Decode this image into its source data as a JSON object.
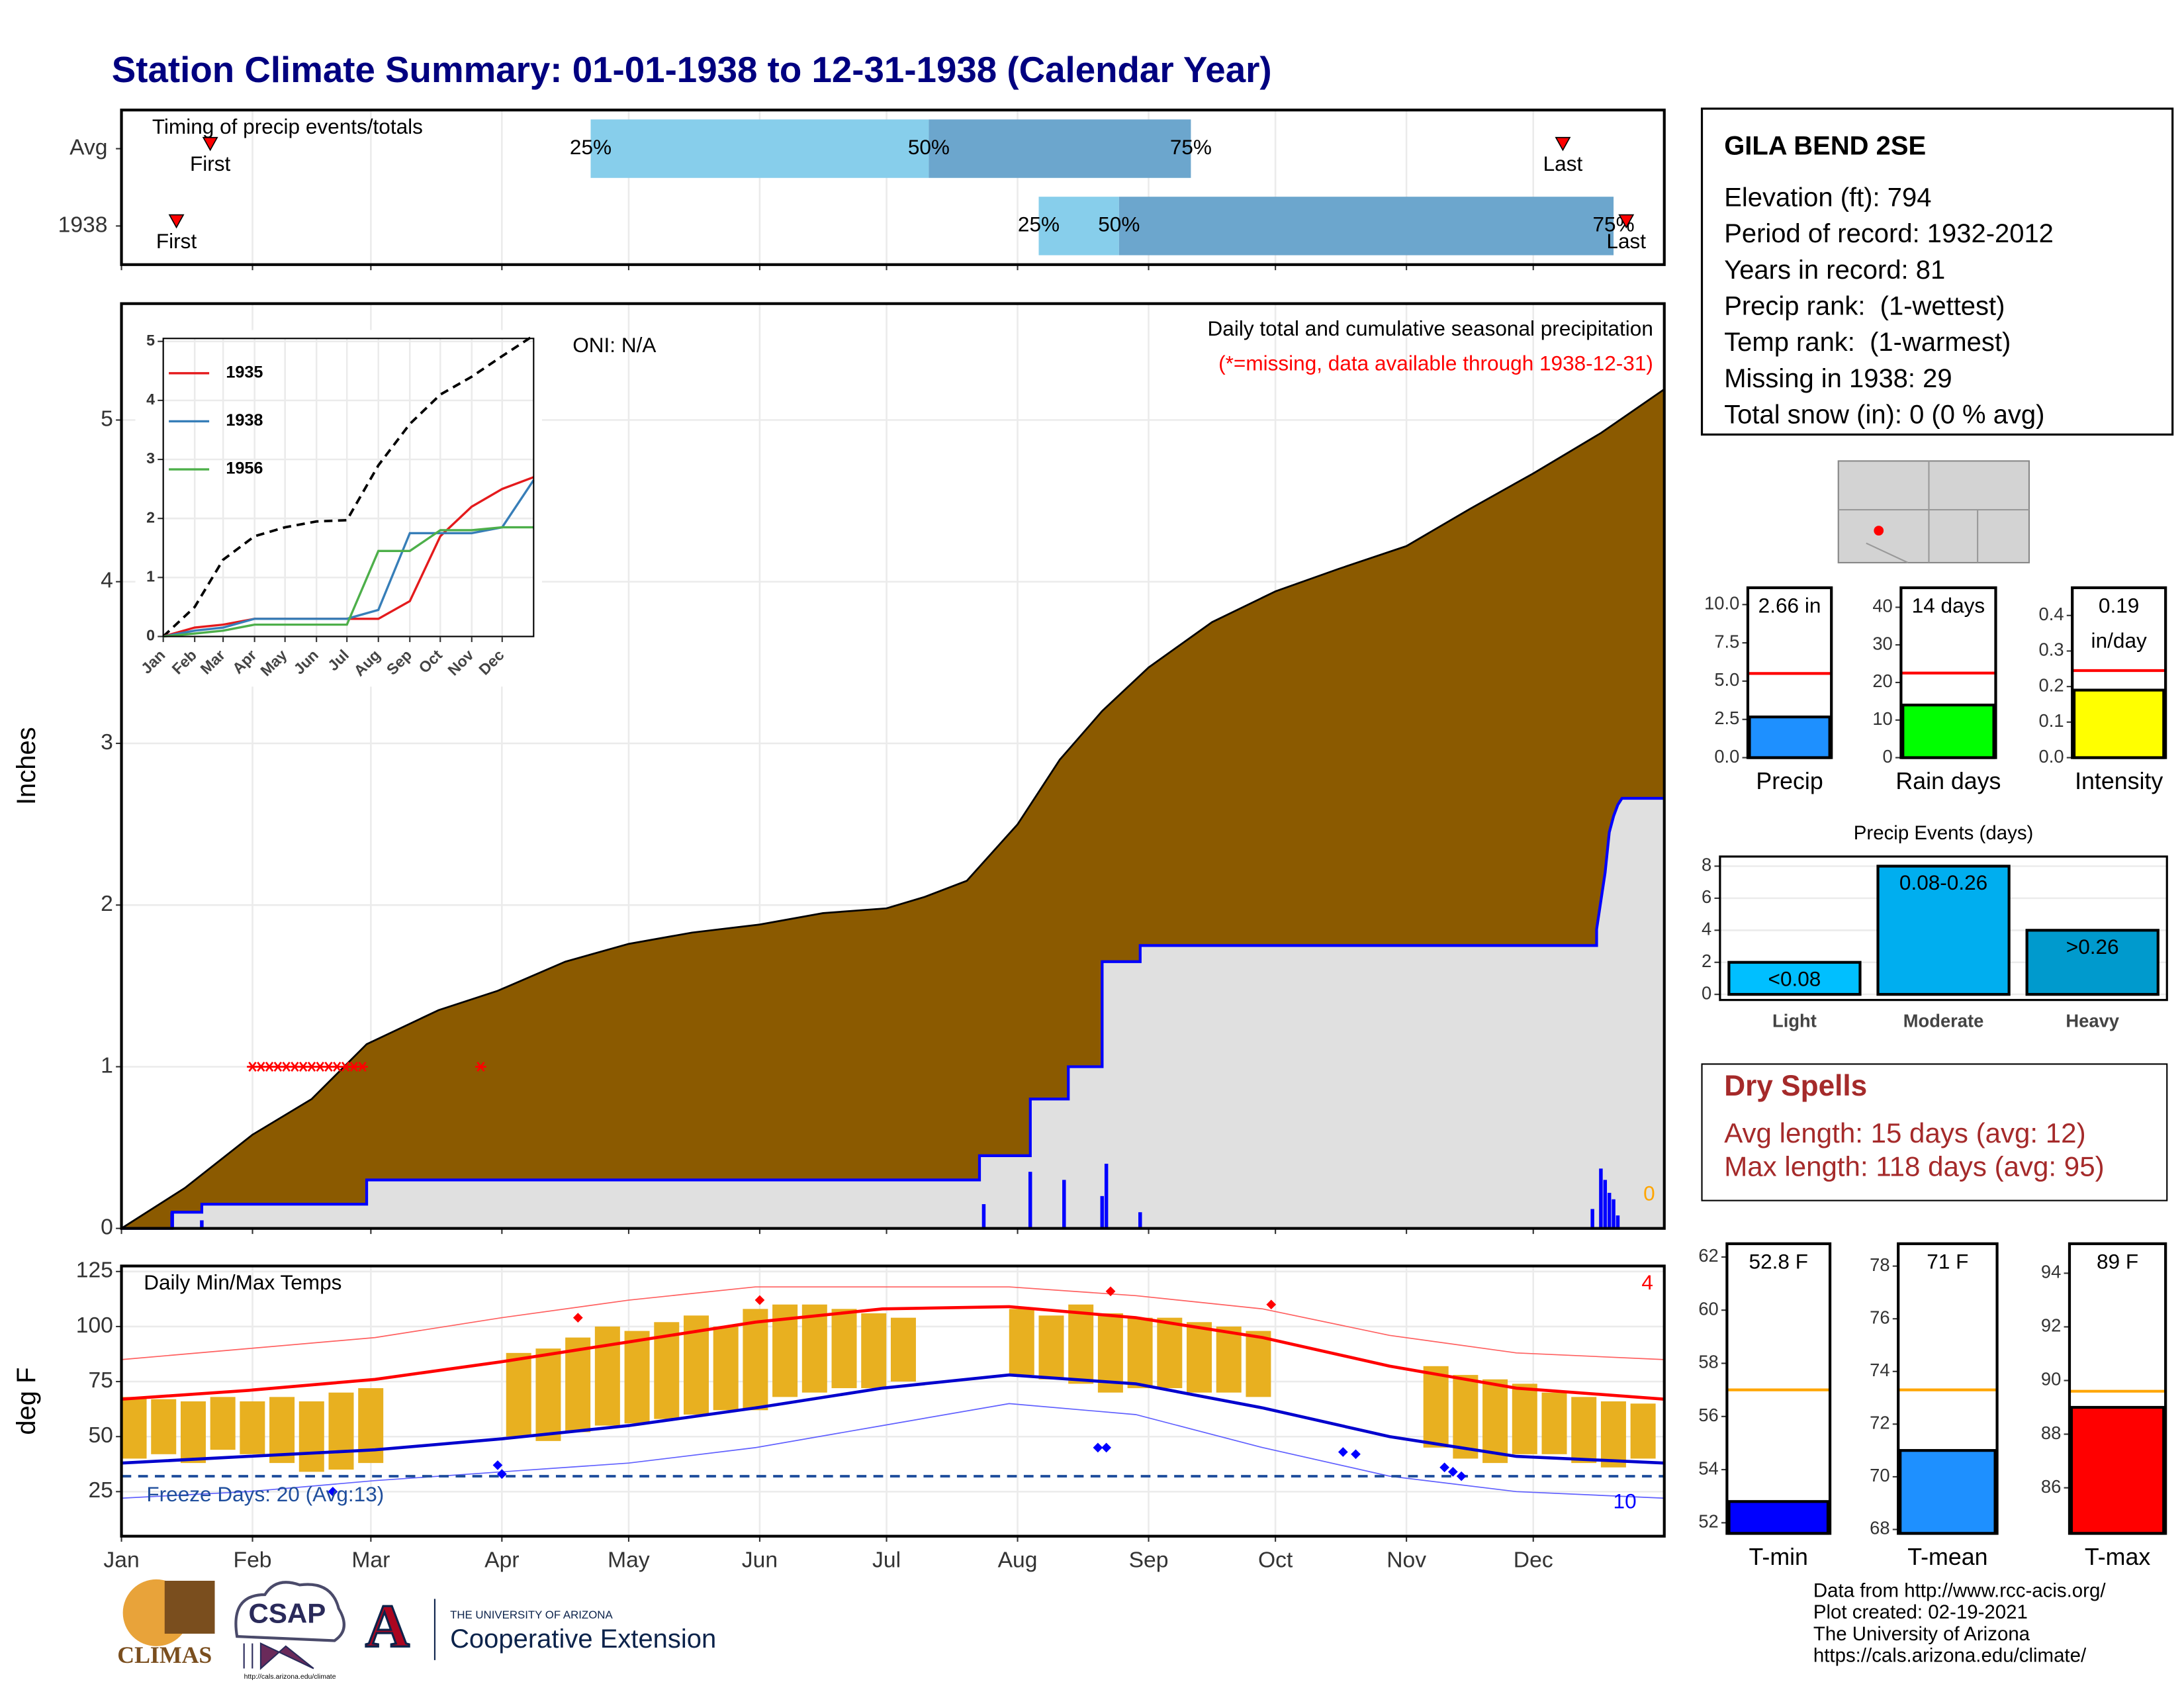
{
  "header": {
    "title": "Station Climate Summary: 01-01-1938 to 12-31-1938 (Calendar Year)"
  },
  "station": {
    "name": "GILA BEND 2SE",
    "details": [
      "Elevation (ft): 794",
      "Period of record: 1932-2012",
      "Years in record: 81",
      "Precip rank:  (1-wettest)",
      "Temp rank:  (1-warmest)",
      "Missing in 1938: 29",
      "Total snow (in): 0 (0 % avg)"
    ]
  },
  "dry_spells": {
    "title": "Dry Spells",
    "details": [
      "Avg length: 15 days (avg: 12)",
      "Max length: 118 days (avg: 95)"
    ]
  },
  "credits": [
    "Data from http://www.rcc-acis.org/",
    "Plot created: 02-19-2021",
    "The University of Arizona",
    "https://cals.arizona.edu/climate/"
  ],
  "logos": {
    "climas": "CLIMAS",
    "csap": "CSAP",
    "csap_url": "http://cals.arizona.edu/climate",
    "ua_letter": "A",
    "ua": "THE UNIVERSITY OF ARIZONA",
    "extension": "Cooperative Extension"
  },
  "chart_data": [
    {
      "type": "timeline",
      "title": "Timing of precip events/totals",
      "categories": [
        "Avg",
        "1938"
      ],
      "xlim": [
        0,
        365
      ],
      "xticks": [
        0,
        31,
        59,
        90,
        120,
        151,
        181,
        212,
        243,
        273,
        304,
        334
      ],
      "grid": true,
      "colors": [
        "#87ceeb",
        "#6ca6cd"
      ],
      "marker_color": "#ff0000",
      "series": [
        {
          "name": "First",
          "values": [
            21,
            13
          ]
        },
        {
          "name": "25%",
          "values": [
            111,
            217
          ]
        },
        {
          "name": "50%",
          "values": [
            191,
            236
          ]
        },
        {
          "name": "75%",
          "values": [
            253,
            353
          ]
        },
        {
          "name": "Last",
          "values": [
            341,
            356
          ]
        }
      ]
    },
    {
      "type": "area",
      "ylabel": "Inches",
      "annotation": "Daily total and cumulative seasonal precipitation",
      "note": "(*=missing, data available through 1938-12-31)",
      "oni": "ONI: N/A",
      "end_label": "0",
      "xlim": [
        0,
        365
      ],
      "ylim": [
        0,
        5.72
      ],
      "xticks": [
        0,
        31,
        59,
        90,
        120,
        151,
        181,
        212,
        243,
        273,
        304,
        334
      ],
      "yticks": [
        0,
        1,
        2,
        3,
        4,
        5
      ],
      "grid": true,
      "observed_fill": "#e0e0e0",
      "average": {
        "color": "#8b5a00",
        "x": [
          0,
          15,
          31,
          45,
          58,
          75,
          89,
          105,
          120,
          135,
          151,
          166,
          181,
          190,
          200,
          212,
          222,
          232,
          243,
          258,
          273,
          288,
          304,
          319,
          334,
          350,
          365
        ],
        "values": [
          0,
          0.25,
          0.58,
          0.8,
          1.14,
          1.35,
          1.47,
          1.65,
          1.76,
          1.83,
          1.88,
          1.95,
          1.98,
          2.05,
          2.15,
          2.5,
          2.9,
          3.2,
          3.47,
          3.75,
          3.94,
          4.08,
          4.22,
          4.45,
          4.67,
          4.92,
          5.19
        ]
      },
      "observed": {
        "color": "#0000ff",
        "x": [
          0,
          12,
          12,
          19,
          19,
          58,
          58,
          203,
          203,
          215,
          215,
          224,
          224,
          232,
          232,
          241,
          241,
          349,
          349,
          351,
          352,
          353,
          354,
          355,
          365
        ],
        "values": [
          0,
          0,
          0.1,
          0.1,
          0.15,
          0.15,
          0.3,
          0.3,
          0.45,
          0.45,
          0.8,
          0.8,
          1.0,
          1.0,
          1.65,
          1.65,
          1.75,
          1.75,
          1.85,
          2.2,
          2.45,
          2.55,
          2.62,
          2.66,
          2.66
        ]
      },
      "daily": {
        "color": "#0000ff",
        "x": [
          12,
          19,
          204,
          215,
          223,
          232,
          233,
          241,
          348,
          350,
          351,
          352,
          353,
          354
        ],
        "values": [
          0.1,
          0.05,
          0.15,
          0.35,
          0.3,
          0.2,
          0.4,
          0.1,
          0.12,
          0.37,
          0.3,
          0.22,
          0.18,
          0.08
        ]
      },
      "missing": {
        "color": "#ff0000",
        "x": [
          31,
          33,
          35,
          37,
          39,
          41,
          43,
          45,
          47,
          49,
          51,
          53,
          55,
          57,
          85
        ],
        "values": [
          1,
          1,
          1,
          1,
          1,
          1,
          1,
          1,
          1,
          1,
          1,
          1,
          1,
          1,
          1
        ]
      }
    },
    {
      "type": "line",
      "xlim": [
        0,
        365
      ],
      "ylim": [
        0,
        5.05
      ],
      "yticks": [
        0,
        1,
        2,
        3,
        4,
        5
      ],
      "xticks": [
        {
          "value": 0,
          "label": "Jan"
        },
        {
          "value": 31,
          "label": "Feb"
        },
        {
          "value": 59,
          "label": "Mar"
        },
        {
          "value": 90,
          "label": "Apr"
        },
        {
          "value": 120,
          "label": "May"
        },
        {
          "value": 151,
          "label": "Jun"
        },
        {
          "value": 181,
          "label": "Jul"
        },
        {
          "value": 212,
          "label": "Aug"
        },
        {
          "value": 243,
          "label": "Sep"
        },
        {
          "value": 273,
          "label": "Oct"
        },
        {
          "value": 304,
          "label": "Nov"
        },
        {
          "value": 334,
          "label": "Dec"
        }
      ],
      "grid": true,
      "average": {
        "color": "#000000",
        "x": [
          0,
          31,
          59,
          90,
          120,
          151,
          181,
          212,
          243,
          273,
          304,
          334,
          365
        ],
        "values": [
          0,
          0.5,
          1.3,
          1.7,
          1.85,
          1.95,
          1.97,
          2.9,
          3.6,
          4.1,
          4.4,
          4.75,
          5.1
        ]
      },
      "series": [
        {
          "name": "1935",
          "color": "#e41a1c",
          "x": [
            0,
            31,
            59,
            90,
            120,
            151,
            181,
            212,
            243,
            273,
            304,
            334,
            365
          ],
          "values": [
            0,
            0.15,
            0.2,
            0.3,
            0.3,
            0.3,
            0.3,
            0.3,
            0.6,
            1.7,
            2.2,
            2.5,
            2.7
          ]
        },
        {
          "name": "1938",
          "color": "#377eb8",
          "x": [
            0,
            31,
            59,
            90,
            120,
            151,
            181,
            212,
            243,
            273,
            304,
            334,
            365
          ],
          "values": [
            0,
            0.1,
            0.15,
            0.3,
            0.3,
            0.3,
            0.3,
            0.45,
            1.75,
            1.75,
            1.75,
            1.85,
            2.65
          ]
        },
        {
          "name": "1956",
          "color": "#4daf4a",
          "x": [
            0,
            31,
            59,
            90,
            120,
            151,
            181,
            212,
            243,
            273,
            304,
            334,
            365
          ],
          "values": [
            0,
            0.05,
            0.1,
            0.2,
            0.2,
            0.2,
            0.2,
            1.45,
            1.45,
            1.8,
            1.8,
            1.85,
            1.85
          ]
        }
      ]
    },
    {
      "type": "range",
      "title": "Daily Min/Max Temps",
      "ylabel": "deg F",
      "xlim": [
        0,
        365
      ],
      "ylim": [
        4.75,
        127.5
      ],
      "yticks": [
        25,
        50,
        75,
        100,
        125
      ],
      "xticks": [
        {
          "value": 0,
          "label": "Jan"
        },
        {
          "value": 31,
          "label": "Feb"
        },
        {
          "value": 59,
          "label": "Mar"
        },
        {
          "value": 90,
          "label": "Apr"
        },
        {
          "value": 120,
          "label": "May"
        },
        {
          "value": 151,
          "label": "Jun"
        },
        {
          "value": 181,
          "label": "Jul"
        },
        {
          "value": 212,
          "label": "Aug"
        },
        {
          "value": 243,
          "label": "Sep"
        },
        {
          "value": 273,
          "label": "Oct"
        },
        {
          "value": 304,
          "label": "Nov"
        },
        {
          "value": 334,
          "label": "Dec"
        }
      ],
      "grid": true,
      "freeze_line": 32,
      "freeze_color": "#1f4e9c",
      "freeze_label": "Freeze Days: 20 (Avg:13)",
      "record_high_count": 4,
      "record_low_count": 10,
      "observed": {
        "color": "#e8b020",
        "x": [
          0,
          7,
          14,
          21,
          28,
          35,
          42,
          49,
          56,
          63,
          70,
          77,
          84,
          91,
          98,
          105,
          112,
          119,
          126,
          133,
          140,
          147,
          154,
          161,
          168,
          175,
          182,
          189,
          196,
          203,
          210,
          217,
          224,
          231,
          238,
          245,
          252,
          259,
          266,
          273,
          280,
          287,
          294,
          301,
          308,
          315,
          322,
          329,
          336,
          343,
          350,
          357
        ],
        "high": [
          68,
          67,
          66,
          68,
          66,
          68,
          66,
          70,
          72,
          null,
          null,
          null,
          null,
          88,
          90,
          95,
          100,
          98,
          102,
          105,
          100,
          108,
          110,
          110,
          108,
          106,
          104,
          null,
          null,
          null,
          108,
          105,
          110,
          106,
          104,
          104,
          102,
          100,
          98,
          null,
          null,
          null,
          null,
          null,
          82,
          78,
          76,
          74,
          70,
          68,
          66,
          65
        ],
        "low": [
          40,
          42,
          38,
          44,
          42,
          38,
          34,
          35,
          38,
          null,
          null,
          null,
          null,
          50,
          48,
          52,
          55,
          56,
          58,
          60,
          62,
          62,
          68,
          70,
          72,
          72,
          75,
          null,
          null,
          null,
          78,
          76,
          74,
          70,
          72,
          72,
          70,
          70,
          68,
          null,
          null,
          null,
          null,
          null,
          45,
          40,
          38,
          42,
          42,
          38,
          36,
          40
        ]
      },
      "normal_high": {
        "color": "#ff0000",
        "x": [
          0,
          30,
          60,
          90,
          120,
          150,
          180,
          210,
          240,
          270,
          300,
          330,
          365
        ],
        "values": [
          67,
          71,
          76,
          84,
          93,
          102,
          108,
          109,
          104,
          95,
          82,
          72,
          67
        ]
      },
      "normal_low": {
        "color": "#0000cd",
        "x": [
          0,
          30,
          60,
          90,
          120,
          150,
          180,
          210,
          240,
          270,
          300,
          330,
          365
        ],
        "values": [
          38,
          41,
          44,
          49,
          55,
          63,
          72,
          78,
          74,
          63,
          50,
          41,
          38
        ]
      },
      "record_high": {
        "color": "#ff6060",
        "x": [
          0,
          30,
          60,
          90,
          120,
          150,
          180,
          210,
          240,
          270,
          300,
          330,
          365
        ],
        "values": [
          85,
          90,
          95,
          104,
          112,
          118,
          118,
          118,
          114,
          108,
          96,
          88,
          85
        ]
      },
      "record_low": {
        "color": "#6060ff",
        "x": [
          0,
          30,
          60,
          90,
          120,
          150,
          180,
          210,
          240,
          270,
          300,
          330,
          365
        ],
        "values": [
          22,
          25,
          30,
          34,
          38,
          45,
          55,
          65,
          60,
          45,
          32,
          25,
          22
        ]
      },
      "record_high_days": {
        "color": "#ff0000",
        "x": [
          108,
          151,
          234,
          272
        ],
        "values": [
          104,
          112,
          116,
          110
        ]
      },
      "record_low_days": {
        "color": "#0000ff",
        "x": [
          50,
          89,
          90,
          231,
          233,
          289,
          292,
          313,
          315,
          317
        ],
        "values": [
          25,
          37,
          33,
          45,
          45,
          43,
          42,
          36,
          34,
          32
        ]
      }
    },
    {
      "type": "bar",
      "categories": [
        "Precip"
      ],
      "values": [
        2.66
      ],
      "value_labels": [
        "2.66 in"
      ],
      "average": 5.5,
      "avg_color": "#ff0000",
      "color": "#1e90ff",
      "ylim": [
        0,
        11.1
      ],
      "yticks": [
        {
          "value": 0,
          "label": "0.0"
        },
        {
          "value": 2.5,
          "label": "2.5"
        },
        {
          "value": 5,
          "label": "5.0"
        },
        {
          "value": 7.5,
          "label": "7.5"
        },
        {
          "value": 10,
          "label": "10.0"
        }
      ]
    },
    {
      "type": "bar",
      "categories": [
        "Rain days"
      ],
      "values": [
        14
      ],
      "value_labels": [
        "14 days"
      ],
      "average": 22.5,
      "avg_color": "#ff0000",
      "color": "#00ff00",
      "ylim": [
        0,
        45.2
      ],
      "yticks": [
        0,
        10,
        20,
        30,
        40
      ]
    },
    {
      "type": "bar",
      "categories": [
        "Intensity"
      ],
      "values": [
        0.19
      ],
      "value_labels": [
        "0.19 in/day"
      ],
      "average": 0.245,
      "avg_color": "#ff0000",
      "color": "#ffff00",
      "ylim": [
        0,
        0.478
      ],
      "yticks": [
        {
          "value": 0,
          "label": "0.0"
        },
        0.1,
        0.2,
        0.3,
        0.4
      ]
    },
    {
      "type": "bar",
      "title": "Precip Events (days)",
      "categories": [
        "Light",
        "Moderate",
        "Heavy"
      ],
      "values": [
        2,
        8,
        4
      ],
      "bin_labels": [
        "<0.08",
        "0.08-0.26",
        ">0.26"
      ],
      "colors": [
        "#00bfff",
        "#00aeef",
        "#009acd"
      ],
      "ylim": [
        -0.35,
        8.6
      ],
      "yticks": [
        0,
        2,
        4,
        6,
        8
      ],
      "grid": true
    },
    {
      "type": "bar",
      "categories": [
        "T-min"
      ],
      "values": [
        52.8
      ],
      "value_labels": [
        "52.8 F"
      ],
      "average": 57,
      "avg_color": "#ffa500",
      "color": "#0000ff",
      "ylim": [
        51.6,
        62.5
      ],
      "yticks": [
        52,
        54,
        56,
        58,
        60,
        62
      ]
    },
    {
      "type": "bar",
      "categories": [
        "T-mean"
      ],
      "values": [
        71
      ],
      "value_labels": [
        "71 F"
      ],
      "average": 73.3,
      "avg_color": "#ffa500",
      "color": "#1e90ff",
      "ylim": [
        67.85,
        78.85
      ],
      "yticks": [
        68,
        70,
        72,
        74,
        76,
        78
      ]
    },
    {
      "type": "bar",
      "categories": [
        "T-max"
      ],
      "values": [
        89
      ],
      "value_labels": [
        "89 F"
      ],
      "average": 89.6,
      "avg_color": "#ffa500",
      "color": "#ff0000",
      "ylim": [
        84.3,
        95.1
      ],
      "yticks": [
        86,
        88,
        90,
        92,
        94
      ]
    }
  ]
}
